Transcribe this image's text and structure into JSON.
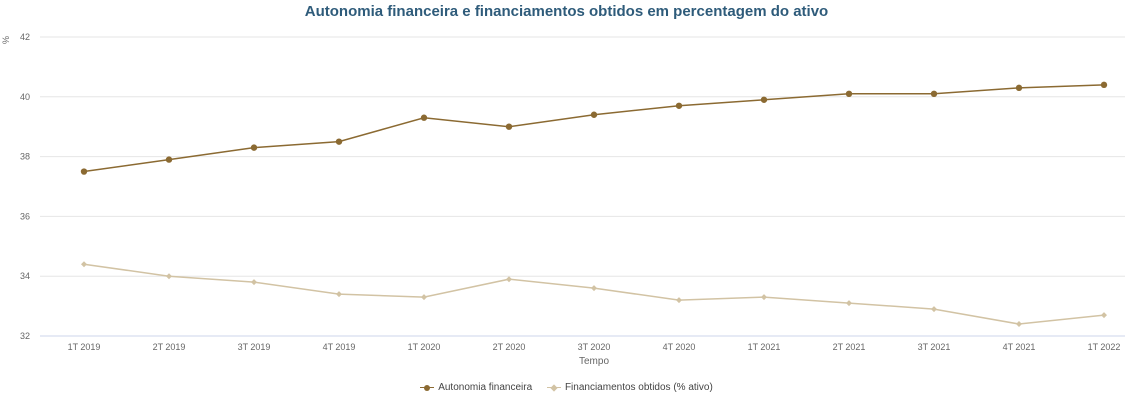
{
  "chart_data": {
    "type": "line",
    "title": "Autonomia financeira e financiamentos obtidos em percentagem do ativo",
    "xlabel": "Tempo",
    "ylabel": "%",
    "ylim": [
      32,
      42
    ],
    "yticks": [
      32,
      34,
      36,
      38,
      40,
      42
    ],
    "grid": true,
    "legend_position": "bottom",
    "categories": [
      "1T 2019",
      "2T 2019",
      "3T 2019",
      "4T 2019",
      "1T 2020",
      "2T 2020",
      "3T 2020",
      "4T 2020",
      "1T 2021",
      "2T 2021",
      "3T 2021",
      "4T 2021",
      "1T 2022"
    ],
    "series": [
      {
        "name": "Autonomia financeira",
        "color": "#8b6a32",
        "marker": "circle",
        "values": [
          37.5,
          37.9,
          38.3,
          38.5,
          39.3,
          39.0,
          39.4,
          39.7,
          39.9,
          40.1,
          40.1,
          40.3,
          40.4
        ]
      },
      {
        "name": "Financiamentos obtidos (% ativo)",
        "color": "#d2c3a4",
        "marker": "diamond",
        "values": [
          34.4,
          34.0,
          33.8,
          33.4,
          33.3,
          33.9,
          33.6,
          33.2,
          33.3,
          33.1,
          32.9,
          32.4,
          32.7
        ]
      }
    ]
  }
}
